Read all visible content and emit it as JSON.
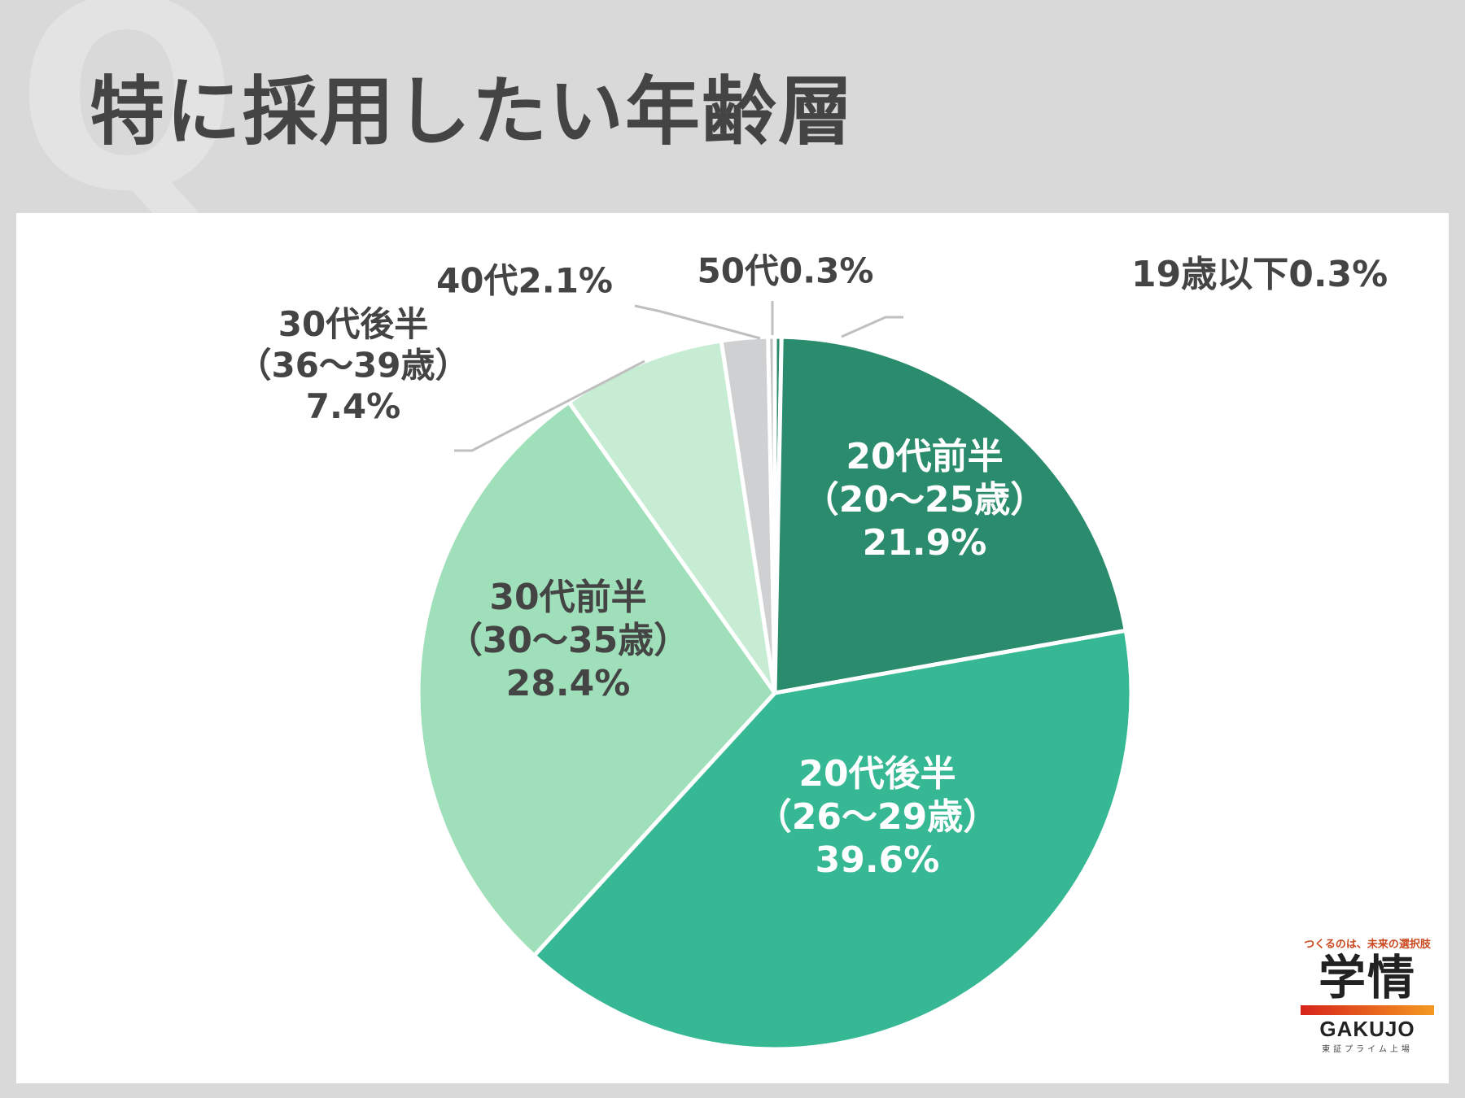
{
  "page": {
    "title": "特に採用したい年齢層",
    "watermark": "Q"
  },
  "chart_data": {
    "type": "pie",
    "title": "特に採用したい年齢層",
    "slices": [
      {
        "label": "19歳以下",
        "value": 0.3,
        "display": "19歳以下0.3%",
        "color": "#2e8b6a",
        "placement": "outside"
      },
      {
        "label": "20代前半（20〜25歳）",
        "value": 21.9,
        "lines": [
          "20代前半",
          "（20〜25歳）",
          "21.9%"
        ],
        "color": "#2a8c6d",
        "placement": "inside"
      },
      {
        "label": "20代後半（26〜29歳）",
        "value": 39.6,
        "lines": [
          "20代後半",
          "（26〜29歳）",
          "39.6%"
        ],
        "color": "#35b893",
        "placement": "inside"
      },
      {
        "label": "30代前半（30〜35歳）",
        "value": 28.4,
        "lines": [
          "30代前半",
          "（30〜35歳）",
          "28.4%"
        ],
        "color": "#9fdfba",
        "placement": "inside"
      },
      {
        "label": "30代後半（36〜39歳）",
        "value": 7.4,
        "lines": [
          "30代後半",
          "（36〜39歳）",
          "7.4%"
        ],
        "color": "#c6ecd4",
        "placement": "outside"
      },
      {
        "label": "40代",
        "value": 2.1,
        "display": "40代2.1%",
        "color": "#cfd0d2",
        "placement": "outside"
      },
      {
        "label": "50代",
        "value": 0.3,
        "display": "50代0.3%",
        "color": "#bfc1c3",
        "placement": "outside"
      }
    ],
    "start_angle_deg": 0,
    "direction": "clockwise",
    "legend": "none"
  },
  "logo": {
    "tagline": "つくるのは、未来の選択肢",
    "mark": "学情",
    "wordmark": "GAKUJO",
    "sub": "東証プライム上場"
  }
}
